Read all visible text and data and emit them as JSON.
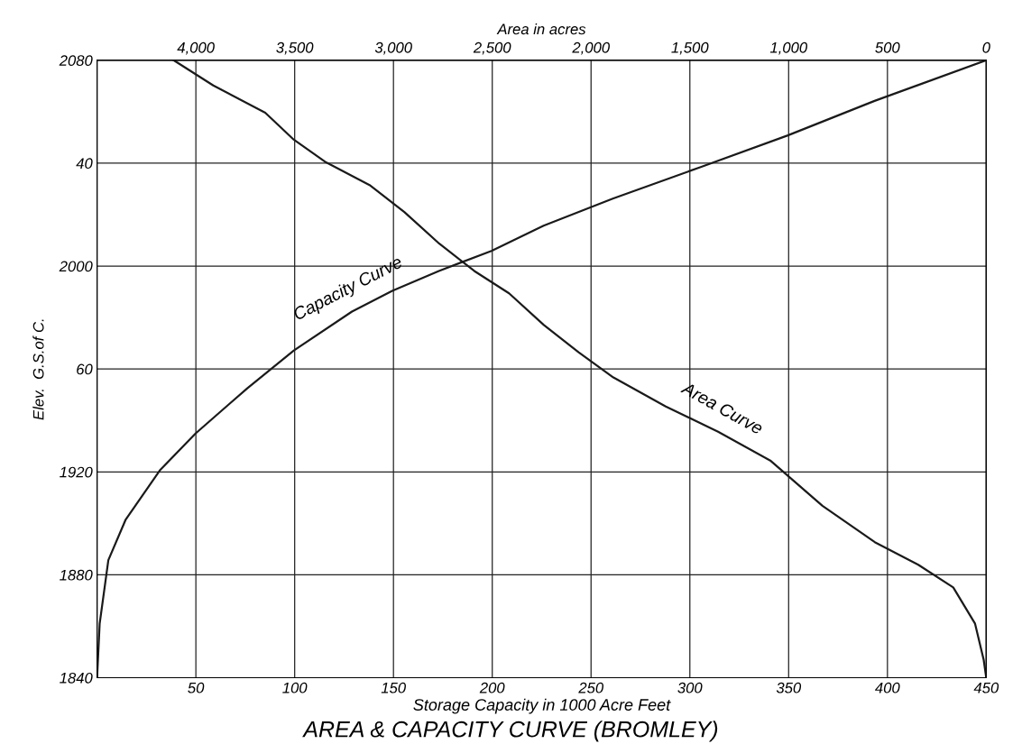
{
  "chart_data": {
    "type": "line",
    "title": "AREA & CAPACITY CURVE (BROMLEY)",
    "xlabel": "Storage Capacity in 1000 Acre Feet",
    "ylabel": "Elev.  G.S.of C.",
    "x2label": "Area in acres",
    "xlim": [
      0,
      450
    ],
    "xticks": [
      50,
      100,
      150,
      200,
      250,
      300,
      350,
      400,
      450
    ],
    "x2lim": [
      4500,
      0
    ],
    "x2ticks": [
      {
        "value": 4000,
        "label": "4,000"
      },
      {
        "value": 3500,
        "label": "3,500"
      },
      {
        "value": 3000,
        "label": "3,000"
      },
      {
        "value": 2500,
        "label": "2,500"
      },
      {
        "value": 2000,
        "label": "2,000"
      },
      {
        "value": 1500,
        "label": "1,500"
      },
      {
        "value": 1000,
        "label": "1,000"
      },
      500,
      0
    ],
    "ylim": [
      1840,
      2080
    ],
    "yticks": [
      1840,
      1880,
      1920,
      {
        "value": 1960,
        "label": "60"
      },
      2000,
      {
        "value": 2040,
        "label": "40"
      },
      2080
    ],
    "grid": true,
    "legend": false,
    "line_style": "solid",
    "marker": "none",
    "series": [
      {
        "name": "Capacity Curve",
        "color": "#1a1a1a",
        "x": [
          0,
          1.3,
          5.7,
          14.5,
          32,
          49.8,
          76,
          99.6,
          129,
          149.4,
          173,
          199.6,
          226,
          261,
          305.5,
          349.6,
          393.5,
          450
        ],
        "values": [
          1840,
          1861,
          1885.7,
          1901.5,
          1920.8,
          1934.9,
          1952.5,
          1967.2,
          1982.3,
          1990.4,
          1998.1,
          2005.9,
          2015.7,
          2026.2,
          2038.5,
          2050.8,
          2064.2,
          2080
        ]
      },
      {
        "name": "Area Curve",
        "color": "#1a1a1a",
        "axis": "x2",
        "x": [
          4112,
          3912,
          3649,
          3504,
          3341,
          3121,
          2945,
          2768,
          2591,
          2415,
          2239,
          2063,
          1887,
          1622,
          1357,
          1093,
          829,
          564,
          344,
          167,
          57,
          13,
          0
        ],
        "values": [
          2080,
          2070.2,
          2059.6,
          2049.1,
          2040.3,
          2031.5,
          2021,
          2008.7,
          1998.1,
          1989.4,
          1977.1,
          1966.5,
          1956.7,
          1945.4,
          1935.6,
          1924.4,
          1906.8,
          1892.7,
          1883.9,
          1875.1,
          1861.1,
          1847,
          1840
        ]
      }
    ]
  }
}
